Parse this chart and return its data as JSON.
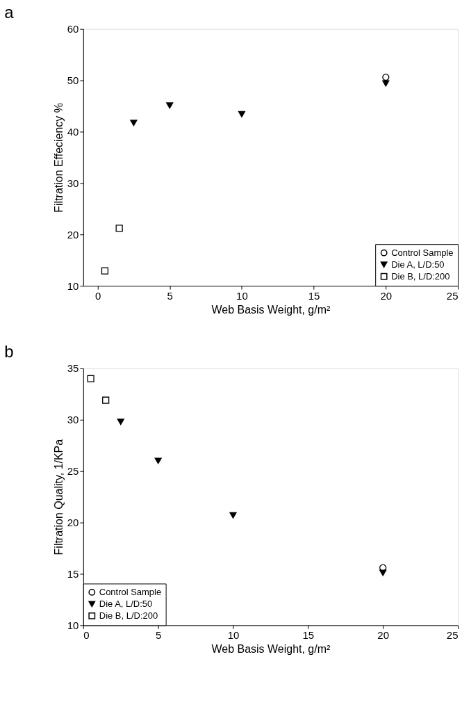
{
  "chart_data": [
    {
      "type": "scatter",
      "title": "a",
      "xlabel": "Web Basis Weight, g/m²",
      "ylabel": "Filtration Effeciency %",
      "xlim": [
        -1,
        25
      ],
      "xticks": [
        0,
        5,
        10,
        15,
        20,
        25
      ],
      "ylim": [
        10,
        60
      ],
      "yticks": [
        10,
        20,
        30,
        40,
        50,
        60
      ],
      "grid": false,
      "legend": "bottom right",
      "series": [
        {
          "name": "Control Sample",
          "color": "#000000",
          "marker": "circle",
          "x": [
            20
          ],
          "values": [
            50.6
          ]
        },
        {
          "name": "Die A, L/D:50",
          "color": "#000000",
          "marker": "triangle",
          "x": [
            2.5,
            5,
            10,
            20
          ],
          "values": [
            41.7,
            45.1,
            43.4,
            49.4
          ]
        },
        {
          "name": "Die B, L/D:200",
          "color": "#000000",
          "marker": "square",
          "x": [
            0.5,
            1.5
          ],
          "values": [
            12.9,
            21.2
          ]
        }
      ]
    },
    {
      "type": "scatter",
      "title": "b",
      "xlabel": "Web Basis Weight, g/m²",
      "ylabel": "Filtration Quality, 1/KPa",
      "xlim": [
        0,
        25
      ],
      "xticks": [
        0,
        5,
        10,
        15,
        20,
        25
      ],
      "ylim": [
        10,
        35
      ],
      "yticks": [
        10,
        15,
        20,
        25,
        30,
        35
      ],
      "grid": false,
      "legend": "bottom left",
      "series": [
        {
          "name": "Control Sample",
          "color": "#000000",
          "marker": "circle",
          "x": [
            20
          ],
          "values": [
            15.6
          ]
        },
        {
          "name": "Die A, L/D:50",
          "color": "#000000",
          "marker": "triangle",
          "x": [
            2.5,
            5,
            10,
            20
          ],
          "values": [
            29.8,
            26.0,
            20.7,
            15.1
          ]
        },
        {
          "name": "Die B, L/D:200",
          "color": "#000000",
          "marker": "square",
          "x": [
            0.5,
            1.5
          ],
          "values": [
            34.0,
            31.9
          ]
        }
      ]
    }
  ]
}
